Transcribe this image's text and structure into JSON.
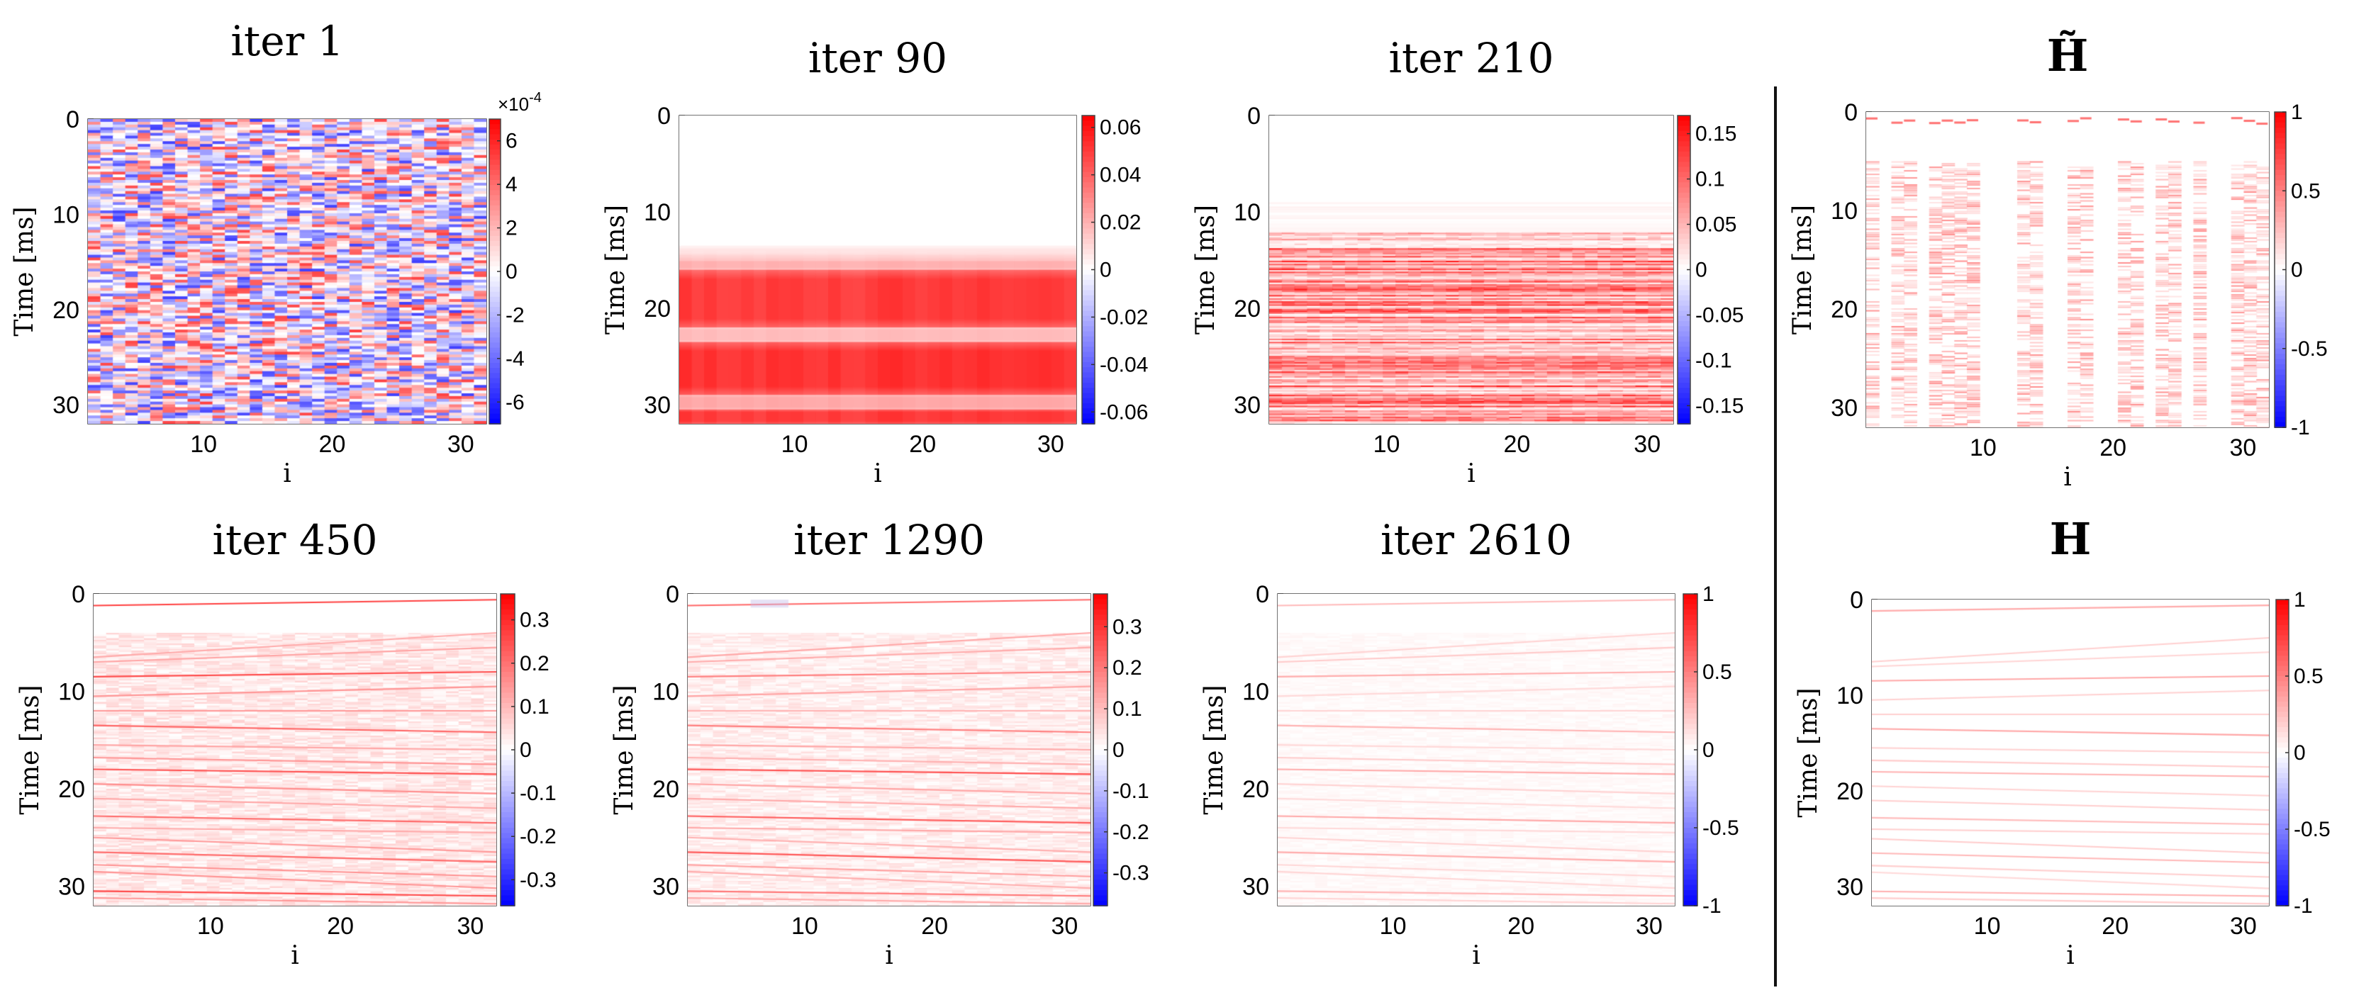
{
  "figure": {
    "time_label": "Time [ms]",
    "x_label": "i",
    "exponent_label": "×10",
    "exponent_power": "-4"
  },
  "chart_data": [
    {
      "id": "iter1",
      "type": "heatmap",
      "title": "iter 1",
      "ylabel": "Time [ms]",
      "xlabel": "i",
      "x_ticks": [
        "10",
        "20",
        "30"
      ],
      "y_ticks": [
        "0",
        "10",
        "20",
        "30"
      ],
      "xlim": [
        1,
        32
      ],
      "ylim": [
        0,
        32
      ],
      "colorbar": {
        "ticks": [
          "6",
          "4",
          "2",
          "0",
          "-2",
          "-4",
          "-6"
        ],
        "tick_values": [
          6,
          4,
          2,
          0,
          -2,
          -4,
          -6
        ],
        "range": [
          -7,
          7
        ],
        "exponent": "×10-4"
      },
      "pattern": "noise",
      "scale": 1.0
    },
    {
      "id": "iter90",
      "type": "heatmap",
      "title": "iter 90",
      "ylabel": "Time [ms]",
      "xlabel": "i",
      "x_ticks": [
        "10",
        "20",
        "30"
      ],
      "y_ticks": [
        "0",
        "10",
        "20",
        "30"
      ],
      "xlim": [
        1,
        32
      ],
      "ylim": [
        0,
        32
      ],
      "colorbar": {
        "ticks": [
          "0.06",
          "0.04",
          "0.02",
          "0",
          "-0.02",
          "-0.04",
          "-0.06"
        ],
        "tick_values": [
          0.06,
          0.04,
          0.02,
          0,
          -0.02,
          -0.04,
          -0.06
        ],
        "range": [
          -0.065,
          0.065
        ]
      },
      "pattern": "bands",
      "bands_ms": [
        [
          14.5,
          16.0,
          0.35
        ],
        [
          16.0,
          22.0,
          0.85
        ],
        [
          22.0,
          23.5,
          0.3
        ],
        [
          23.5,
          29.0,
          0.9
        ],
        [
          29.0,
          30.5,
          0.4
        ],
        [
          30.5,
          32,
          0.85
        ]
      ]
    },
    {
      "id": "iter210",
      "type": "heatmap",
      "title": "iter 210",
      "ylabel": "Time [ms]",
      "xlabel": "i",
      "x_ticks": [
        "10",
        "20",
        "30"
      ],
      "y_ticks": [
        "0",
        "10",
        "20",
        "30"
      ],
      "xlim": [
        1,
        32
      ],
      "ylim": [
        0,
        32
      ],
      "colorbar": {
        "ticks": [
          "0.15",
          "0.1",
          "0.05",
          "0",
          "-0.05",
          "-0.1",
          "-0.15"
        ],
        "tick_values": [
          0.15,
          0.1,
          0.05,
          0,
          -0.05,
          -0.1,
          -0.15
        ],
        "range": [
          -0.17,
          0.17
        ]
      },
      "pattern": "stripes",
      "start_ms": 12,
      "density": 0.85
    },
    {
      "id": "Htilde",
      "type": "heatmap",
      "title": "H̃",
      "ylabel": "Time [ms]",
      "xlabel": "i",
      "x_ticks": [
        "10",
        "20",
        "30"
      ],
      "y_ticks": [
        "0",
        "10",
        "20",
        "30"
      ],
      "xlim": [
        1,
        32
      ],
      "ylim": [
        0,
        32
      ],
      "colorbar": {
        "ticks": [
          "1",
          "0.5",
          "0",
          "-0.5",
          "-1"
        ],
        "tick_values": [
          1,
          0.5,
          0,
          -0.5,
          -1
        ],
        "range": [
          -1,
          1
        ]
      },
      "pattern": "sparse_columns"
    },
    {
      "id": "iter450",
      "type": "heatmap",
      "title": "iter 450",
      "ylabel": "Time [ms]",
      "xlabel": "i",
      "x_ticks": [
        "10",
        "20",
        "30"
      ],
      "y_ticks": [
        "0",
        "10",
        "20",
        "30"
      ],
      "xlim": [
        1,
        32
      ],
      "ylim": [
        0,
        32
      ],
      "colorbar": {
        "ticks": [
          "0.3",
          "0.2",
          "0.1",
          "0",
          "-0.1",
          "-0.2",
          "-0.3"
        ],
        "tick_values": [
          0.3,
          0.2,
          0.1,
          0,
          -0.1,
          -0.2,
          -0.3
        ],
        "range": [
          -0.36,
          0.36
        ]
      },
      "pattern": "lines",
      "line_strength": 0.75,
      "haze": 0.12
    },
    {
      "id": "iter1290",
      "type": "heatmap",
      "title": "iter 1290",
      "ylabel": "Time [ms]",
      "xlabel": "i",
      "x_ticks": [
        "10",
        "20",
        "30"
      ],
      "y_ticks": [
        "0",
        "10",
        "20",
        "30"
      ],
      "xlim": [
        1,
        32
      ],
      "ylim": [
        0,
        32
      ],
      "colorbar": {
        "ticks": [
          "0.3",
          "0.2",
          "0.1",
          "0",
          "-0.1",
          "-0.2",
          "-0.3"
        ],
        "tick_values": [
          0.3,
          0.2,
          0.1,
          0,
          -0.1,
          -0.2,
          -0.3
        ],
        "range": [
          -0.38,
          0.38
        ]
      },
      "pattern": "lines",
      "line_strength": 0.7,
      "haze": 0.09
    },
    {
      "id": "iter2610",
      "type": "heatmap",
      "title": "iter 2610",
      "ylabel": "Time [ms]",
      "xlabel": "i",
      "x_ticks": [
        "10",
        "20",
        "30"
      ],
      "y_ticks": [
        "0",
        "10",
        "20",
        "30"
      ],
      "xlim": [
        1,
        32
      ],
      "ylim": [
        0,
        32
      ],
      "colorbar": {
        "ticks": [
          "1",
          "0.5",
          "0",
          "-0.5",
          "-1"
        ],
        "tick_values": [
          1,
          0.5,
          0,
          -0.5,
          -1
        ],
        "range": [
          -1,
          1
        ]
      },
      "pattern": "lines",
      "line_strength": 0.35,
      "haze": 0.03
    },
    {
      "id": "H",
      "type": "heatmap",
      "title": "H",
      "ylabel": "Time [ms]",
      "xlabel": "i",
      "x_ticks": [
        "10",
        "20",
        "30"
      ],
      "y_ticks": [
        "0",
        "10",
        "20",
        "30"
      ],
      "xlim": [
        1,
        32
      ],
      "ylim": [
        0,
        32
      ],
      "colorbar": {
        "ticks": [
          "1",
          "0.5",
          "0",
          "-0.5",
          "-1"
        ],
        "tick_values": [
          1,
          0.5,
          0,
          -0.5,
          -1
        ],
        "range": [
          -1,
          1
        ]
      },
      "pattern": "lines",
      "line_strength": 0.35,
      "haze": 0.0
    }
  ]
}
